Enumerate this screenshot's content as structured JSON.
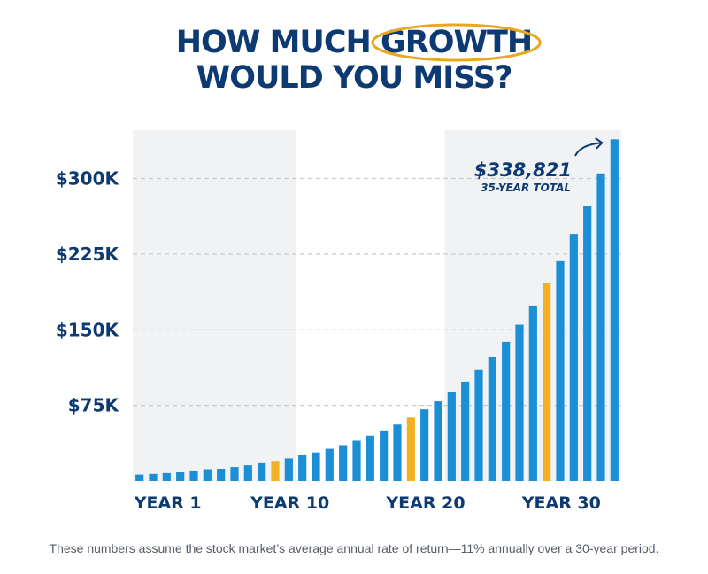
{
  "title": {
    "line1_before": "HOW MUCH ",
    "line1_highlight": "GROWTH",
    "line2": "WOULD YOU MISS?"
  },
  "colors": {
    "navy": "#0d3a72",
    "bar_blue": "#1b8fd6",
    "bar_highlight": "#f2b125",
    "shade": "#f1f2f4",
    "circle": "#e8a621"
  },
  "chart_data": {
    "type": "bar",
    "ylim": [
      0,
      345000
    ],
    "yticks": [
      75000,
      150000,
      225000,
      300000
    ],
    "ytick_labels": [
      "$75K",
      "$150K",
      "$225K",
      "$300K"
    ],
    "grid": "dashed horizontal",
    "xtick_labels": [
      {
        "label": "YEAR 1",
        "bar": 1
      },
      {
        "label": "YEAR 10",
        "bar": 10
      },
      {
        "label": "YEAR 20",
        "bar": 20
      },
      {
        "label": "YEAR 30",
        "bar": 30
      }
    ],
    "highlighted_bars": [
      11,
      21,
      31
    ],
    "shaded_ranges": [
      [
        1,
        12
      ],
      [
        24,
        36
      ]
    ],
    "values": [
      6500,
      7200,
      8000,
      8800,
      9700,
      11000,
      12300,
      14000,
      15700,
      17700,
      20000,
      22500,
      25500,
      28400,
      32000,
      35600,
      40000,
      45000,
      50200,
      56000,
      63000,
      71000,
      79000,
      88000,
      98500,
      110000,
      123000,
      138000,
      155000,
      174000,
      196000,
      218000,
      245000,
      273000,
      305000,
      338821
    ],
    "callout": {
      "value": "$338,821",
      "label": "35-YEAR TOTAL"
    }
  },
  "footnote": "These numbers assume the stock market’s average annual rate of return—11% annually over a 30-year period."
}
